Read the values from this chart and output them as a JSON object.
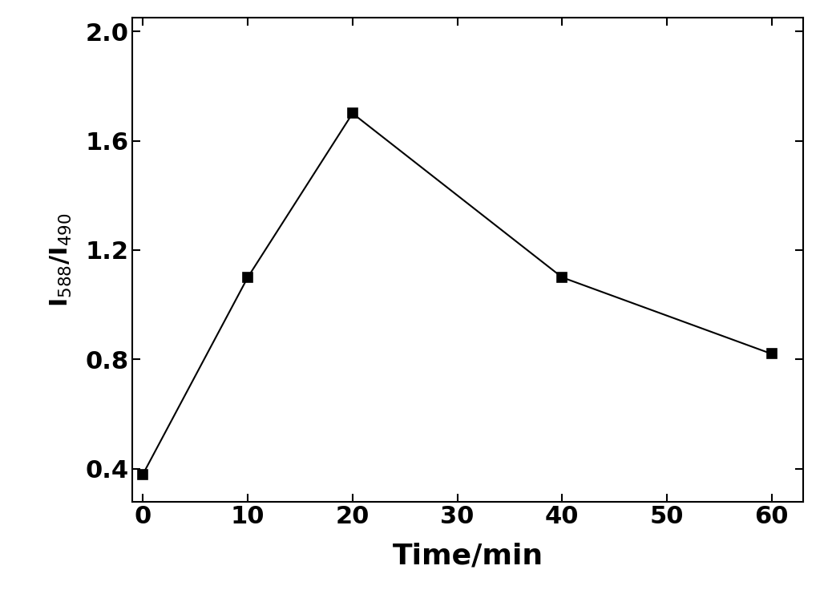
{
  "x": [
    0,
    10,
    20,
    40,
    60
  ],
  "y": [
    0.38,
    1.1,
    1.7,
    1.1,
    0.82
  ],
  "xlabel": "Time/min",
  "ylabel": "I$_{588}$/I$_{490}$",
  "xlim": [
    -1,
    63
  ],
  "ylim": [
    0.28,
    2.05
  ],
  "xticks": [
    0,
    10,
    20,
    30,
    40,
    50,
    60
  ],
  "yticks": [
    0.4,
    0.8,
    1.2,
    1.6,
    2.0
  ],
  "line_color": "#000000",
  "marker": "s",
  "marker_size": 8,
  "marker_color": "#000000",
  "linewidth": 1.5,
  "xlabel_fontsize": 26,
  "ylabel_fontsize": 22,
  "tick_fontsize": 22,
  "background_color": "#ffffff",
  "fig_width": 10.33,
  "fig_height": 7.36,
  "dpi": 100
}
